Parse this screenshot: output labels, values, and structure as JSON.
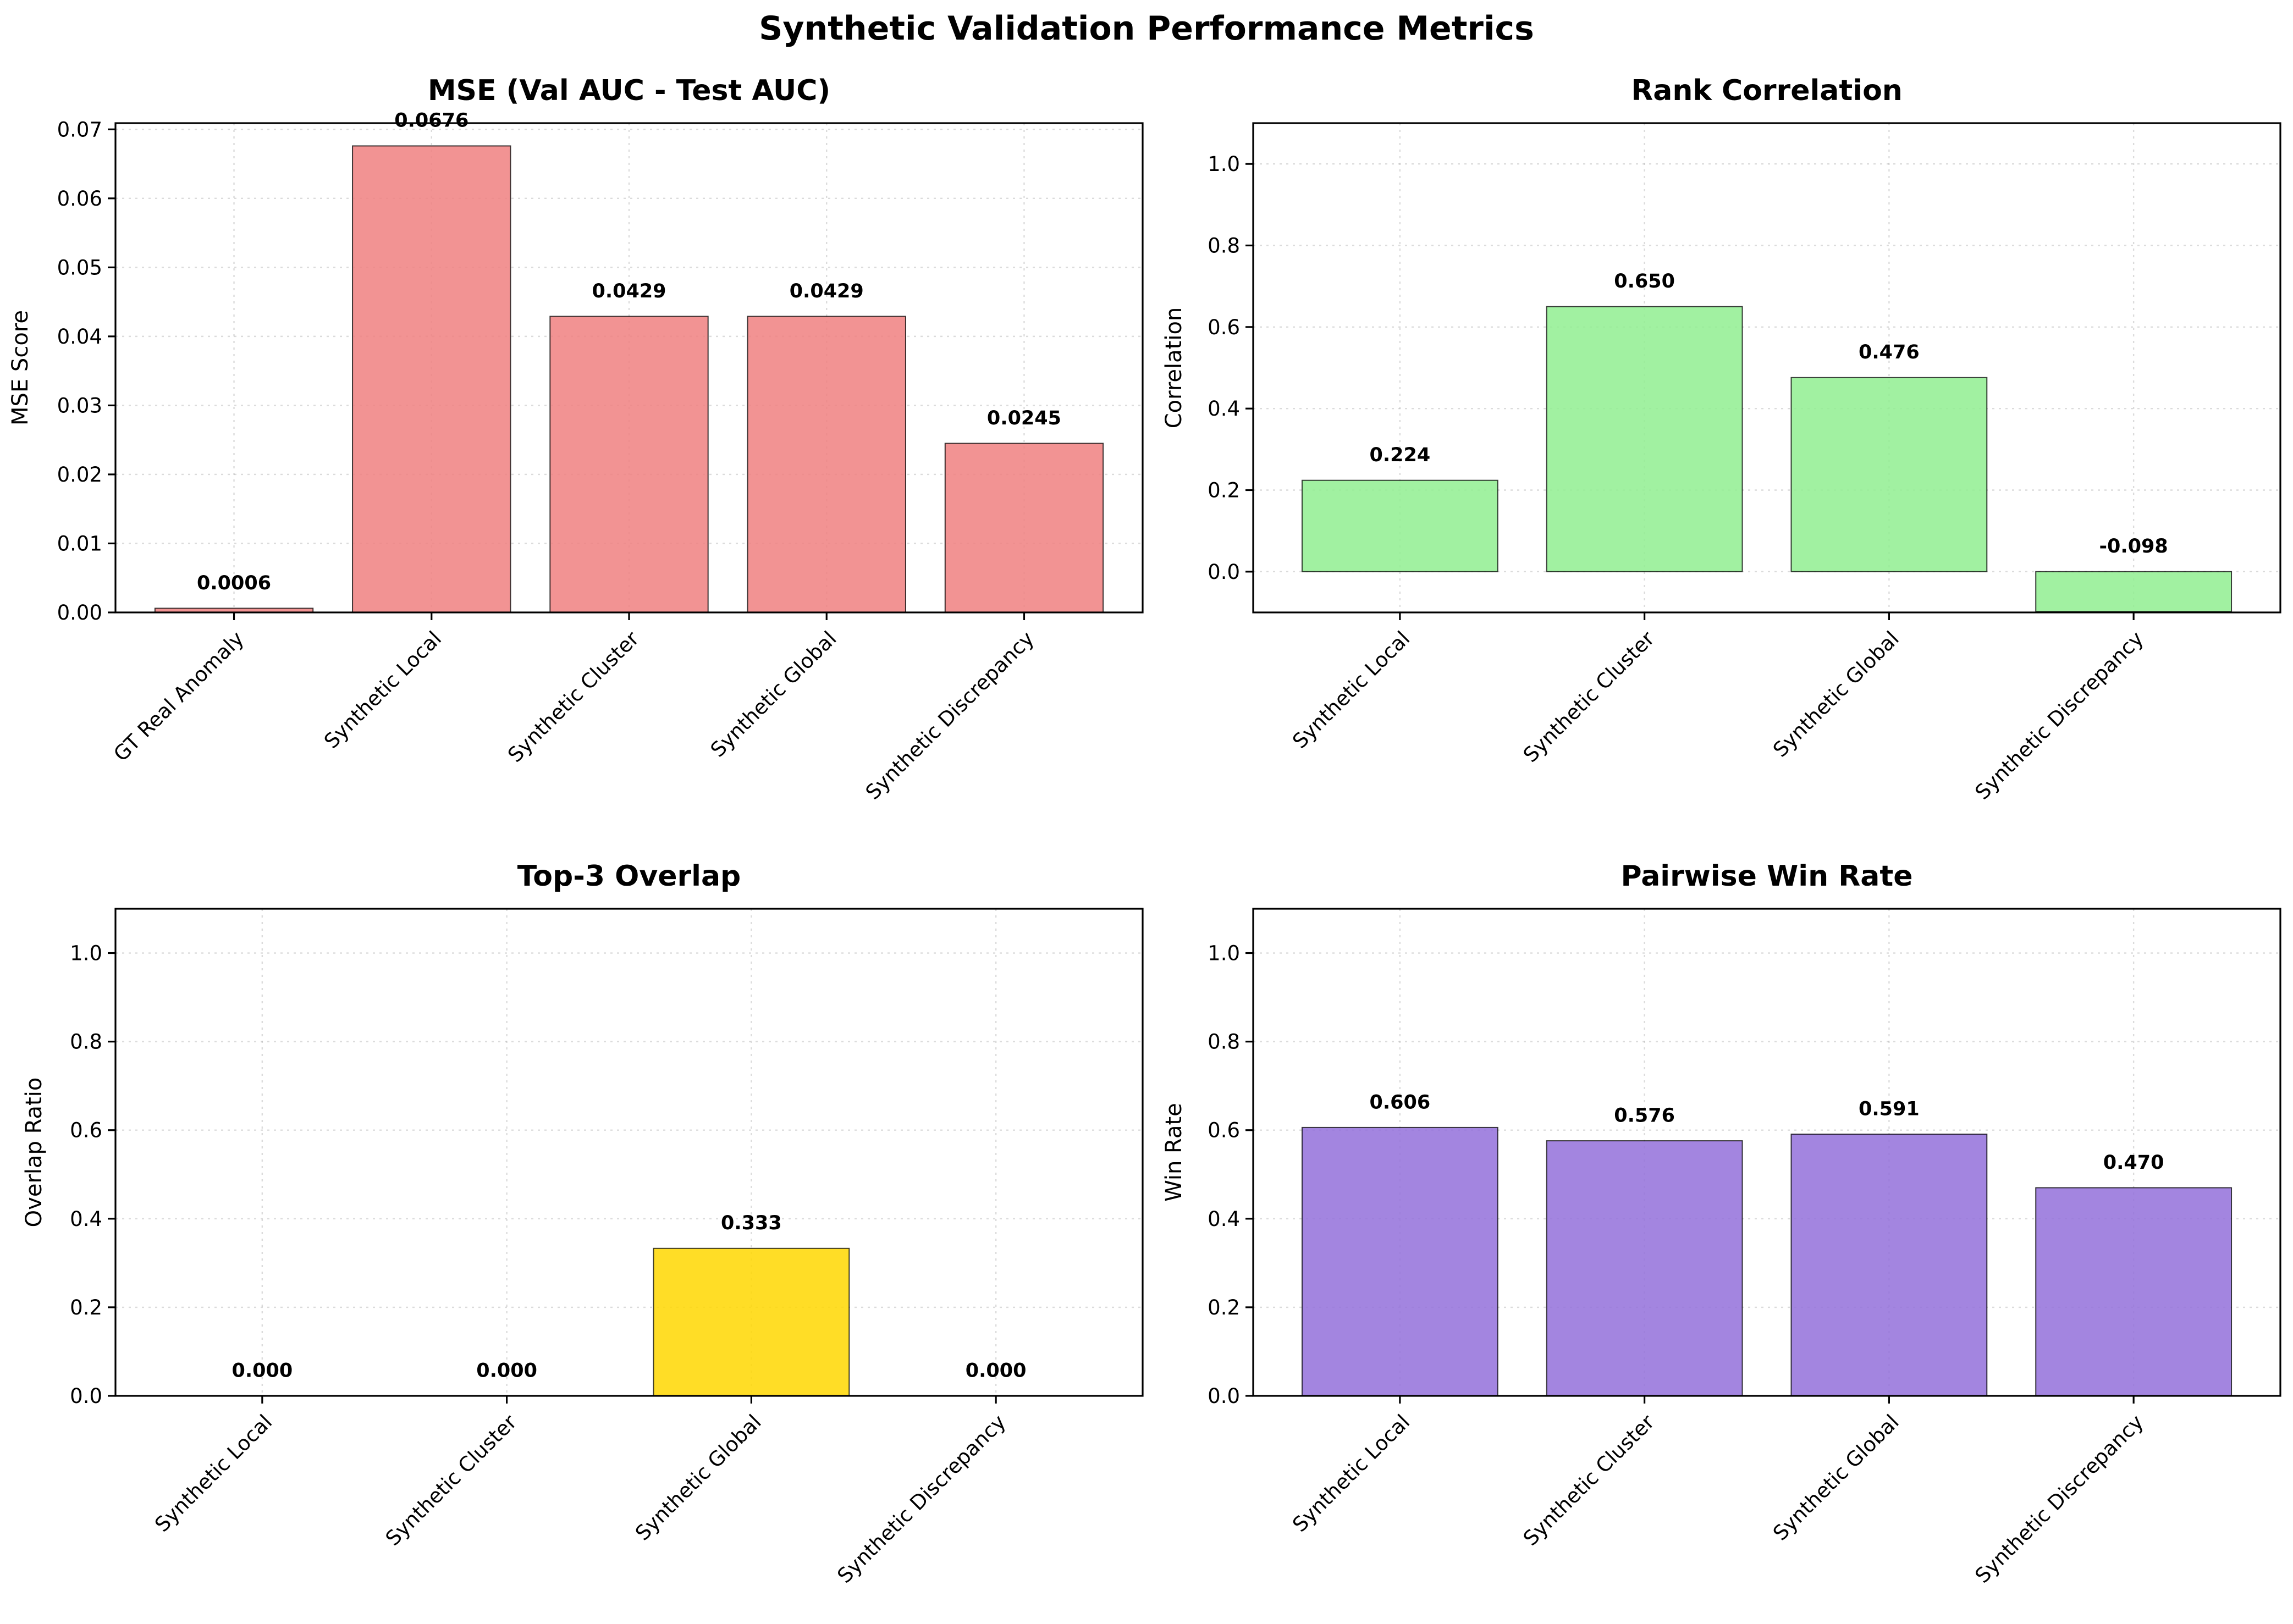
{
  "figure": {
    "title": "Synthetic Validation Performance Metrics"
  },
  "chart_data": [
    {
      "type": "bar",
      "title": "MSE (Val AUC - Test AUC)",
      "xlabel": "",
      "ylabel": "MSE Score",
      "categories": [
        "GT Real Anomaly",
        "Synthetic Local",
        "Synthetic Cluster",
        "Synthetic Global",
        "Synthetic Discrepancy"
      ],
      "values": [
        0.0006,
        0.0676,
        0.0429,
        0.0429,
        0.0245
      ],
      "value_labels": [
        "0.0006",
        "0.0676",
        "0.0429",
        "0.0429",
        "0.0245"
      ],
      "ylim": [
        0,
        0.0709
      ],
      "yticks": [
        0.0,
        0.01,
        0.02,
        0.03,
        0.04,
        0.05,
        0.06,
        0.07
      ],
      "ytick_labels": [
        "0.00",
        "0.01",
        "0.02",
        "0.03",
        "0.04",
        "0.05",
        "0.06",
        "0.07"
      ],
      "bar_color": "#f08080",
      "grid": true,
      "legend": false
    },
    {
      "type": "bar",
      "title": "Rank Correlation",
      "xlabel": "",
      "ylabel": "Correlation",
      "categories": [
        "Synthetic Local",
        "Synthetic Cluster",
        "Synthetic Global",
        "Synthetic Discrepancy"
      ],
      "values": [
        0.224,
        0.65,
        0.476,
        -0.098
      ],
      "value_labels": [
        "0.224",
        "0.650",
        "0.476",
        "-0.098"
      ],
      "ylim": [
        -0.1,
        1.1
      ],
      "yticks": [
        0.0,
        0.2,
        0.4,
        0.6,
        0.8,
        1.0
      ],
      "ytick_labels": [
        "0.0",
        "0.2",
        "0.4",
        "0.6",
        "0.8",
        "1.0"
      ],
      "bar_color": "#90ee90",
      "grid": true,
      "legend": false
    },
    {
      "type": "bar",
      "title": "Top-3 Overlap",
      "xlabel": "",
      "ylabel": "Overlap Ratio",
      "categories": [
        "Synthetic Local",
        "Synthetic Cluster",
        "Synthetic Global",
        "Synthetic Discrepancy"
      ],
      "values": [
        0.0,
        0.0,
        0.333,
        0.0
      ],
      "value_labels": [
        "0.000",
        "0.000",
        "0.333",
        "0.000"
      ],
      "ylim": [
        0,
        1.1
      ],
      "yticks": [
        0.0,
        0.2,
        0.4,
        0.6,
        0.8,
        1.0
      ],
      "ytick_labels": [
        "0.0",
        "0.2",
        "0.4",
        "0.6",
        "0.8",
        "1.0"
      ],
      "bar_color": "#ffd700",
      "grid": true,
      "legend": false
    },
    {
      "type": "bar",
      "title": "Pairwise Win Rate",
      "xlabel": "",
      "ylabel": "Win Rate",
      "categories": [
        "Synthetic Local",
        "Synthetic Cluster",
        "Synthetic Global",
        "Synthetic Discrepancy"
      ],
      "values": [
        0.606,
        0.576,
        0.591,
        0.47
      ],
      "value_labels": [
        "0.606",
        "0.576",
        "0.591",
        "0.470"
      ],
      "ylim": [
        0,
        1.1
      ],
      "yticks": [
        0.0,
        0.2,
        0.4,
        0.6,
        0.8,
        1.0
      ],
      "ytick_labels": [
        "0.0",
        "0.2",
        "0.4",
        "0.6",
        "0.8",
        "1.0"
      ],
      "bar_color": "#9370db",
      "grid": true,
      "legend": false
    }
  ]
}
